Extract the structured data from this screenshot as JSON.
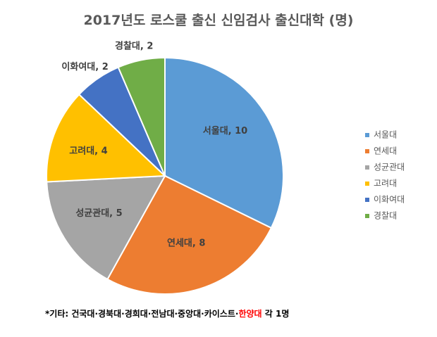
{
  "chart_data": {
    "type": "pie",
    "title": "2017년도 로스쿨 출신 신임검사 출신대학 (명)",
    "categories": [
      "서울대",
      "연세대",
      "성균관대",
      "고려대",
      "이화여대",
      "경찰대"
    ],
    "values": [
      10,
      8,
      5,
      4,
      2,
      2
    ],
    "slice_labels": [
      "서울대, 10",
      "연세대, 8",
      "성균관대, 5",
      "고려대, 4",
      "이화여대, 2",
      "경찰대, 2"
    ],
    "colors": [
      "#5b9bd5",
      "#ed7d31",
      "#a5a5a5",
      "#ffc000",
      "#4472c4",
      "#70ad47"
    ],
    "legend_position": "right"
  },
  "footnote": {
    "prefix": "*기타: 건국대·경북대·경희대·전남대·중앙대·카이스트·",
    "highlight": "한양대",
    "suffix": " 각 1명",
    "highlight_color": "#ff0000"
  }
}
